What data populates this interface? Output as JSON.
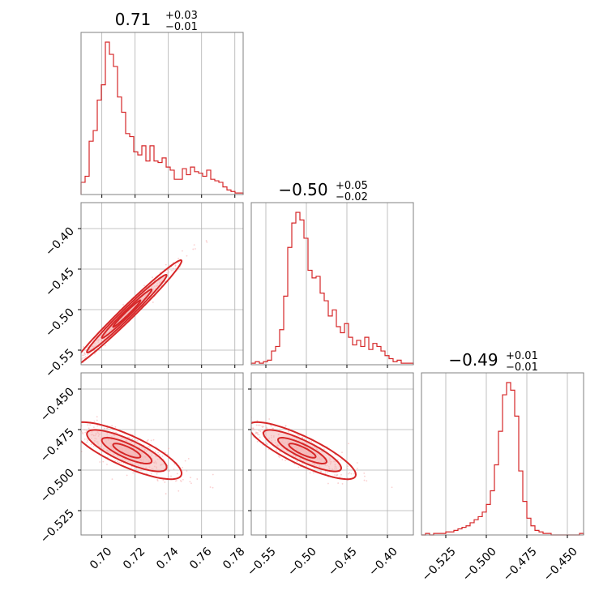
{
  "chart_data": {
    "type": "corner",
    "colors": {
      "series": "#d62728",
      "fill": "#f4b6b7",
      "scatter": "#f6a8a9",
      "grid": "#b0b0b0",
      "frame": "#808080"
    },
    "grid": true,
    "titles": [
      {
        "main": "0.71",
        "sup": "+0.03",
        "sub": "−0.01"
      },
      {
        "main": "−0.50",
        "sup": "+0.05",
        "sub": "−0.02"
      },
      {
        "main": "−0.49",
        "sup": "+0.01",
        "sub": "−0.01"
      }
    ],
    "param_ranges": [
      [
        0.6875,
        0.785
      ],
      [
        -0.568,
        -0.368
      ],
      [
        -0.54,
        -0.44
      ]
    ],
    "ticks": [
      {
        "values": [
          0.7,
          0.72,
          0.74,
          0.76,
          0.78
        ],
        "labels": [
          "0.70",
          "0.72",
          "0.74",
          "0.76",
          "0.78"
        ]
      },
      {
        "values": [
          -0.55,
          -0.5,
          -0.45,
          -0.4
        ],
        "labels": [
          "−0.55",
          "−0.50",
          "−0.45",
          "−0.40"
        ]
      },
      {
        "values": [
          -0.525,
          -0.5,
          -0.475,
          -0.45
        ],
        "labels": [
          "−0.525",
          "−0.500",
          "−0.475",
          "−0.450"
        ]
      }
    ],
    "histograms": [
      {
        "param": 0,
        "bin_edges_range": [
          0.6875,
          0.785
        ],
        "counts": [
          8,
          12,
          35,
          42,
          62,
          72,
          100,
          92,
          84,
          64,
          54,
          40,
          38,
          28,
          26,
          32,
          22,
          32,
          22,
          21,
          24,
          18,
          16,
          10,
          10,
          17,
          13,
          18,
          15,
          14,
          12,
          16,
          10,
          9,
          8,
          5,
          3,
          2,
          1,
          1
        ]
      },
      {
        "param": 1,
        "bin_edges_range": [
          -0.568,
          -0.368
        ],
        "counts": [
          1,
          2,
          1,
          2,
          3,
          9,
          12,
          23,
          45,
          77,
          93,
          100,
          95,
          83,
          62,
          57,
          58,
          47,
          42,
          32,
          36,
          25,
          21,
          27,
          18,
          13,
          16,
          12,
          18,
          10,
          14,
          12,
          9,
          6,
          4,
          2,
          3,
          1,
          1,
          1
        ]
      },
      {
        "param": 2,
        "bin_edges_range": [
          -0.54,
          -0.44
        ],
        "counts": [
          0,
          1,
          0,
          1,
          1,
          1,
          2,
          2,
          3,
          4,
          5,
          6,
          8,
          10,
          12,
          15,
          20,
          29,
          46,
          68,
          92,
          100,
          95,
          78,
          42,
          22,
          11,
          6,
          3,
          2,
          1,
          1,
          0,
          0,
          0,
          0,
          0,
          0,
          0,
          1
        ]
      }
    ],
    "pairs": [
      {
        "x_param": 0,
        "y_param": 1,
        "relation": "positive linear",
        "mean": [
          0.715,
          -0.505
        ],
        "sd": [
          0.015,
          0.03
        ],
        "corr": 0.985
      },
      {
        "x_param": 0,
        "y_param": 2,
        "relation": "negative linear",
        "mean": [
          0.715,
          -0.488
        ],
        "sd": [
          0.015,
          0.008
        ],
        "corr": -0.8
      },
      {
        "x_param": 1,
        "y_param": 2,
        "relation": "negative linear",
        "mean": [
          -0.505,
          -0.488
        ],
        "sd": [
          0.03,
          0.008
        ],
        "corr": -0.84
      }
    ]
  }
}
